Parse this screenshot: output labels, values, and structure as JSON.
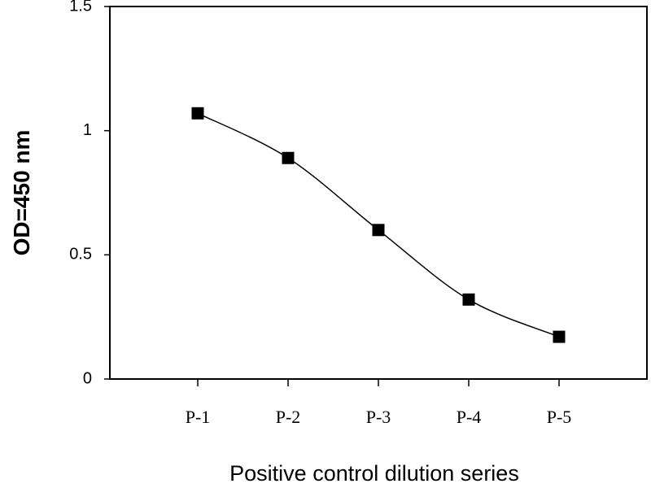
{
  "chart_data": {
    "type": "line",
    "categories": [
      "P-1",
      "P-2",
      "P-3",
      "P-4",
      "P-5"
    ],
    "series": [
      {
        "values": [
          1.07,
          0.89,
          0.6,
          0.32,
          0.17
        ]
      }
    ],
    "xlabel": "Positive control dilution series",
    "ylabel": "OD=450 nm",
    "ylim": [
      0,
      1.5
    ],
    "yticks": [
      0,
      0.5,
      1,
      1.5
    ],
    "ytick_labels": [
      "0",
      "0.5",
      "1",
      "1.5"
    ],
    "line_style": "smooth",
    "marker": "square",
    "grid": false,
    "legend": "none",
    "colors": {
      "line": "#000000",
      "marker": "#000000",
      "frame": "#000000"
    }
  }
}
